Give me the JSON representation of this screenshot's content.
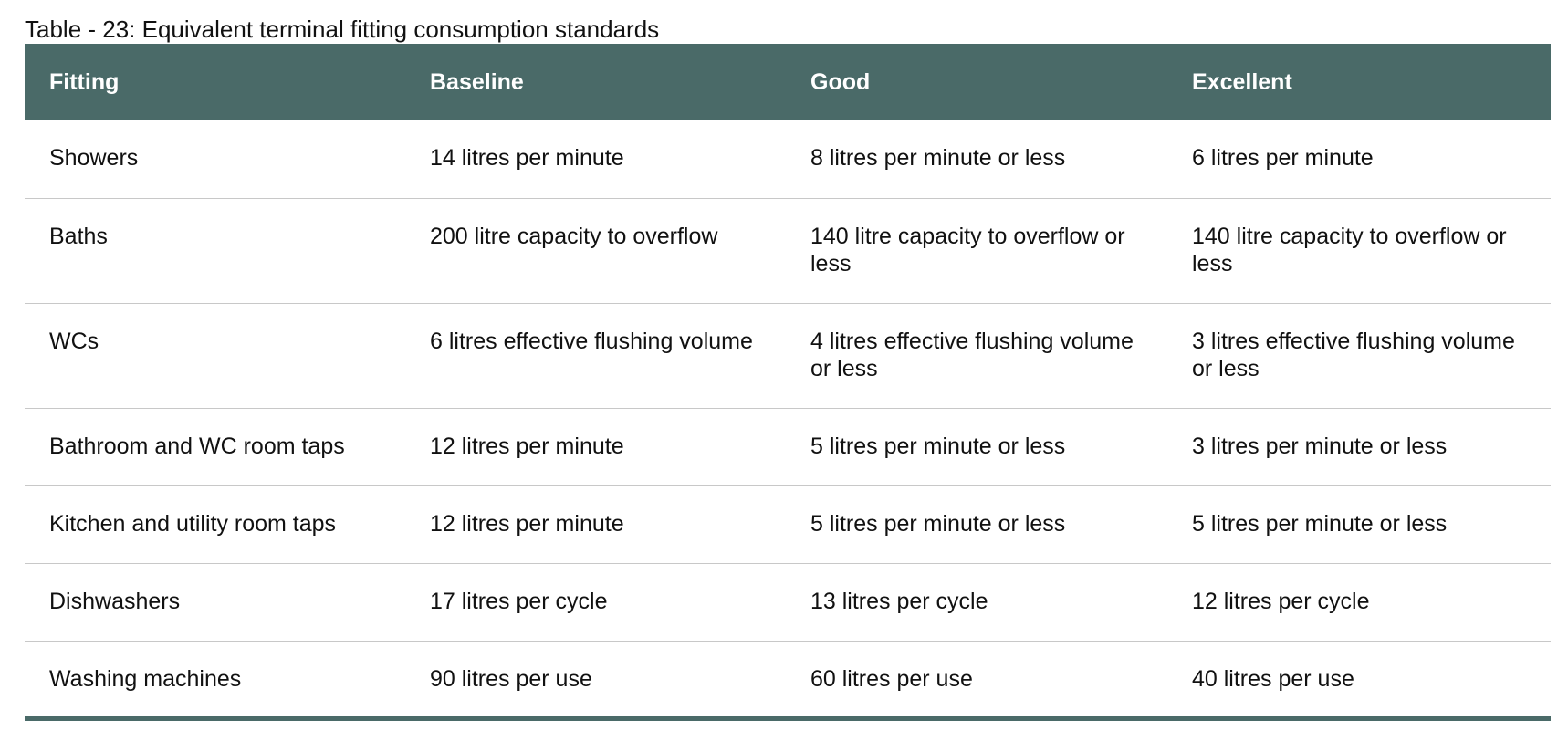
{
  "caption": "Table - 23: Equivalent terminal fitting consumption standards",
  "colors": {
    "header_bg": "#4a6a68",
    "header_text": "#ffffff",
    "row_divider": "#c8c8c8"
  },
  "table": {
    "headers": [
      "Fitting",
      "Baseline",
      "Good",
      "Excellent"
    ],
    "rows": [
      [
        "Showers",
        "14 litres per minute",
        "8 litres per minute or less",
        "6 litres per minute"
      ],
      [
        "Baths",
        "200 litre capacity to overflow",
        "140 litre capacity to overflow or less",
        "140 litre capacity to overflow or less"
      ],
      [
        "WCs",
        "6 litres effective flushing volume",
        "4 litres effective flushing volume or less",
        "3 litres effective flushing volume or less"
      ],
      [
        "Bathroom and WC room taps",
        "12 litres per minute",
        "5 litres per minute or less",
        "3 litres per minute or less"
      ],
      [
        "Kitchen and utility room taps",
        "12 litres per minute",
        "5 litres per minute or less",
        "5 litres per minute or less"
      ],
      [
        "Dishwashers",
        "17 litres per cycle",
        "13 litres per cycle",
        "12 litres per cycle"
      ],
      [
        "Washing machines",
        "90 litres per use",
        "60 litres per use",
        "40 litres per use"
      ]
    ]
  }
}
